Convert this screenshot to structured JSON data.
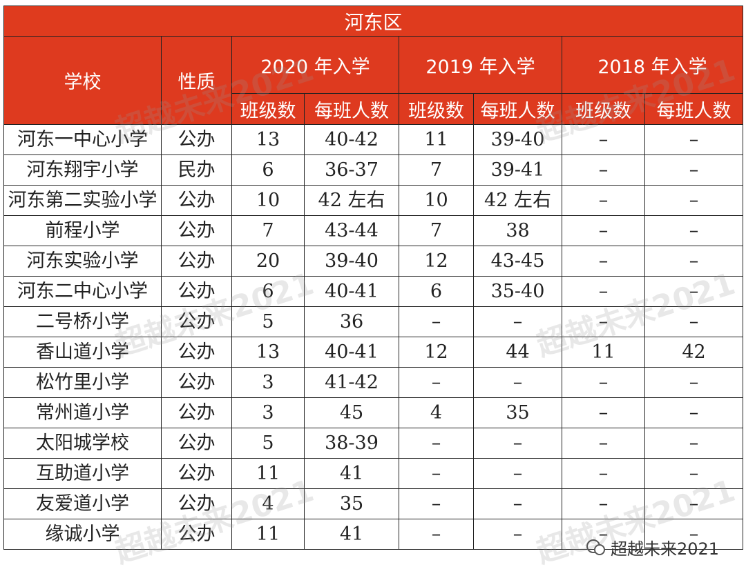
{
  "table": {
    "title": "河东区",
    "header_top": [
      "学校",
      "性质",
      "2020 年入学",
      "2019 年入学",
      "2018 年入学"
    ],
    "header_sub": [
      "班级数",
      "每班人数",
      "班级数",
      "每班人数",
      "班级数",
      "每班人数"
    ],
    "rows": [
      [
        "河东一中心小学",
        "公办",
        "13",
        "40-42",
        "11",
        "39-40",
        "–",
        "–"
      ],
      [
        "河东翔宇小学",
        "民办",
        "6",
        "36-37",
        "7",
        "39-41",
        "–",
        "–"
      ],
      [
        "河东第二实验小学",
        "公办",
        "10",
        "42 左右",
        "10",
        "42 左右",
        "–",
        "–"
      ],
      [
        "前程小学",
        "公办",
        "7",
        "43-44",
        "7",
        "38",
        "–",
        "–"
      ],
      [
        "河东实验小学",
        "公办",
        "20",
        "39-40",
        "12",
        "43-45",
        "–",
        "–"
      ],
      [
        "河东二中心小学",
        "公办",
        "6",
        "40-41",
        "6",
        "35-40",
        "–",
        "–"
      ],
      [
        "二号桥小学",
        "公办",
        "5",
        "36",
        "–",
        "–",
        "–",
        "–"
      ],
      [
        "香山道小学",
        "公办",
        "13",
        "40-41",
        "12",
        "44",
        "11",
        "42"
      ],
      [
        "松竹里小学",
        "公办",
        "3",
        "41-42",
        "–",
        "–",
        "–",
        "–"
      ],
      [
        "常州道小学",
        "公办",
        "3",
        "45",
        "4",
        "35",
        "–",
        "–"
      ],
      [
        "太阳城学校",
        "公办",
        "5",
        "38-39",
        "–",
        "–",
        "–",
        "–"
      ],
      [
        "互助道小学",
        "公办",
        "11",
        "41",
        "–",
        "–",
        "–",
        "–"
      ],
      [
        "友爱道小学",
        "公办",
        "4",
        "35",
        "–",
        "–",
        "–",
        "–"
      ],
      [
        "缘诚小学",
        "公办",
        "11",
        "41",
        "–",
        "–",
        "–",
        "–"
      ]
    ]
  },
  "watermark": "超越未来2021",
  "logo": "超越未来2021"
}
